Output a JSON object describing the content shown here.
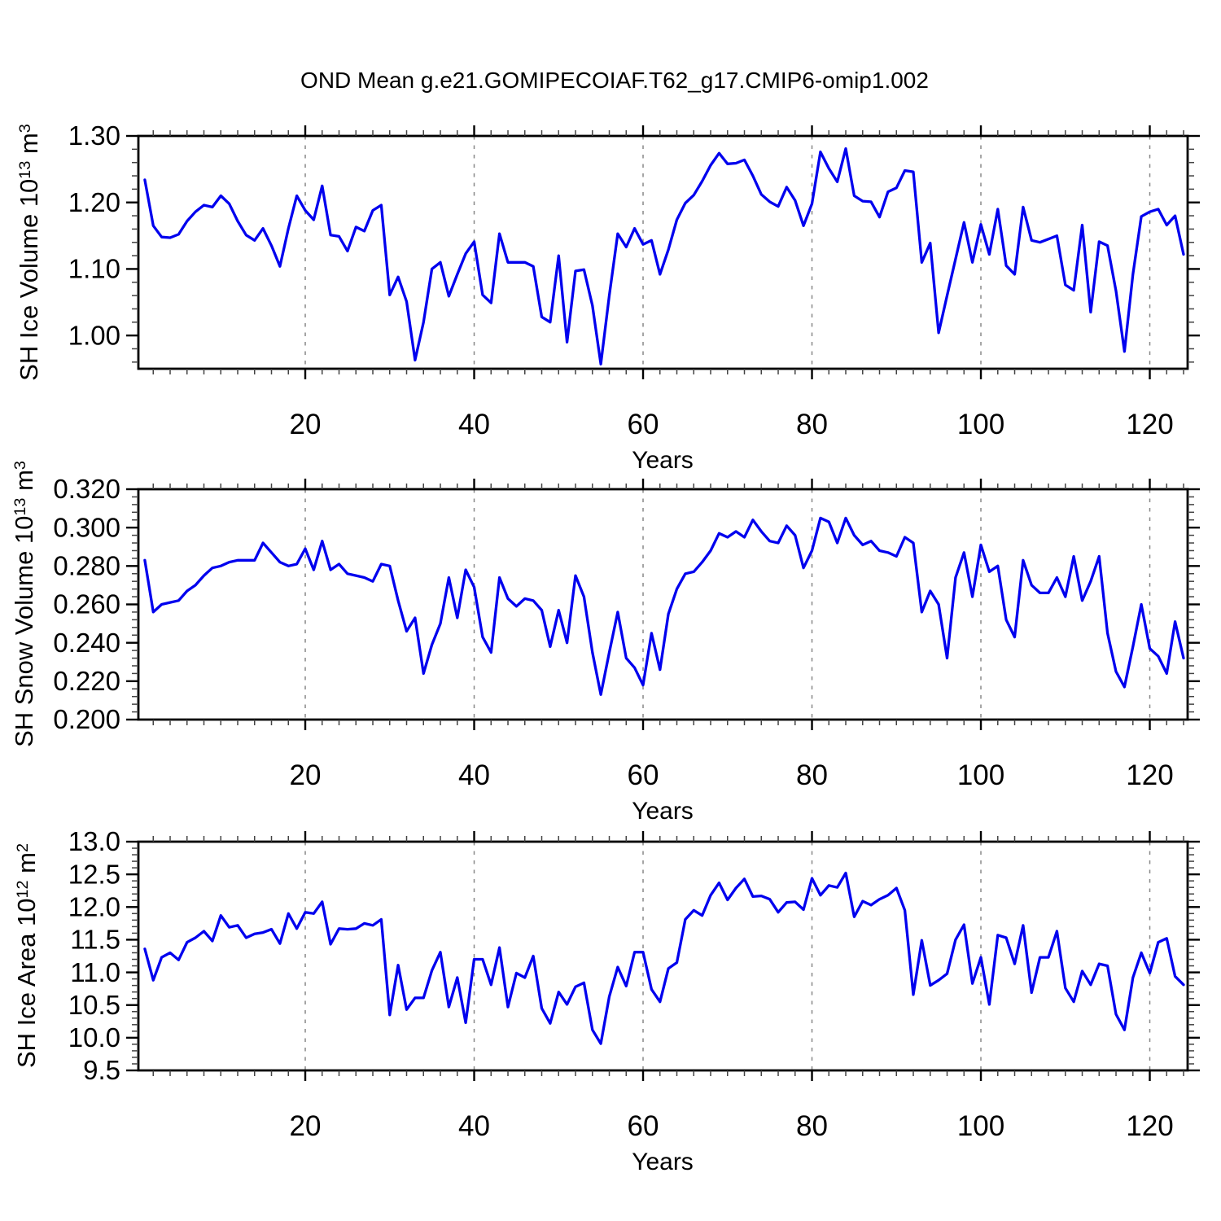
{
  "title": "OND Mean g.e21.GOMIPECOIAF.T62_g17.CMIP6-omip1.002",
  "xlabel": "Years",
  "line_color": "#0000ee",
  "grid_color": "#888888",
  "frame_color": "#000000",
  "chart_data": [
    {
      "type": "line",
      "name": "sh-ice-volume",
      "ylabel": {
        "text": "SH Ice Volume 10",
        "exp": "13",
        "unit": " m",
        "unit_exp": "3"
      },
      "xlabel": "Years",
      "x_start": 1,
      "xlim": [
        0.24,
        124.48
      ],
      "ylim": [
        0.95,
        1.3
      ],
      "yticks": [
        1.0,
        1.1,
        1.2,
        1.3
      ],
      "ytick_labels": [
        "1.00",
        "1.10",
        "1.20",
        "1.30"
      ],
      "yminor_step": 0.02,
      "grid": "vertical-dashed",
      "legend": "none",
      "values": [
        1.234,
        1.165,
        1.148,
        1.147,
        1.152,
        1.172,
        1.186,
        1.196,
        1.193,
        1.21,
        1.198,
        1.172,
        1.151,
        1.143,
        1.161,
        1.135,
        1.104,
        1.161,
        1.21,
        1.188,
        1.174,
        1.225,
        1.151,
        1.149,
        1.127,
        1.163,
        1.157,
        1.188,
        1.196,
        1.061,
        1.088,
        1.051,
        0.963,
        1.02,
        1.1,
        1.11,
        1.059,
        1.092,
        1.123,
        1.141,
        1.061,
        1.049,
        1.153,
        1.11,
        1.11,
        1.11,
        1.104,
        1.028,
        1.02,
        1.12,
        0.99,
        1.097,
        1.099,
        1.045,
        0.957,
        1.06,
        1.153,
        1.133,
        1.161,
        1.137,
        1.143,
        1.092,
        1.129,
        1.174,
        1.199,
        1.211,
        1.232,
        1.256,
        1.274,
        1.258,
        1.259,
        1.264,
        1.24,
        1.212,
        1.201,
        1.194,
        1.223,
        1.203,
        1.165,
        1.198,
        1.276,
        1.251,
        1.231,
        1.281,
        1.21,
        1.202,
        1.201,
        1.178,
        1.216,
        1.222,
        1.248,
        1.246,
        1.11,
        1.139,
        1.004,
        1.06,
        1.115,
        1.17,
        1.11,
        1.167,
        1.122,
        1.19,
        1.105,
        1.092,
        1.193,
        1.143,
        1.14,
        1.145,
        1.15,
        1.076,
        1.068,
        1.166,
        1.035,
        1.141,
        1.135,
        1.067,
        0.976,
        1.092,
        1.179,
        1.186,
        1.19,
        1.166,
        1.18,
        1.122
      ]
    },
    {
      "type": "line",
      "name": "sh-snow-volume",
      "ylabel": {
        "text": "SH Snow Volume 10",
        "exp": "13",
        "unit": " m",
        "unit_exp": "3"
      },
      "xlabel": "Years",
      "x_start": 1,
      "xlim": [
        0.24,
        124.48
      ],
      "ylim": [
        0.2,
        0.32
      ],
      "yticks": [
        0.2,
        0.22,
        0.24,
        0.26,
        0.28,
        0.3,
        0.32
      ],
      "ytick_labels": [
        "0.200",
        "0.220",
        "0.240",
        "0.260",
        "0.280",
        "0.300",
        "0.320"
      ],
      "yminor_step": 0.004,
      "grid": "vertical-dashed",
      "legend": "none",
      "values": [
        0.283,
        0.256,
        0.26,
        0.261,
        0.262,
        0.267,
        0.27,
        0.275,
        0.279,
        0.28,
        0.282,
        0.283,
        0.283,
        0.283,
        0.292,
        0.287,
        0.282,
        0.28,
        0.281,
        0.289,
        0.278,
        0.293,
        0.278,
        0.281,
        0.276,
        0.275,
        0.274,
        0.272,
        0.281,
        0.28,
        0.262,
        0.246,
        0.253,
        0.224,
        0.239,
        0.25,
        0.274,
        0.253,
        0.278,
        0.269,
        0.243,
        0.235,
        0.274,
        0.263,
        0.259,
        0.263,
        0.262,
        0.257,
        0.238,
        0.257,
        0.24,
        0.275,
        0.264,
        0.235,
        0.213,
        0.235,
        0.256,
        0.232,
        0.227,
        0.218,
        0.245,
        0.226,
        0.255,
        0.268,
        0.276,
        0.277,
        0.282,
        0.288,
        0.297,
        0.295,
        0.298,
        0.295,
        0.304,
        0.298,
        0.293,
        0.292,
        0.301,
        0.296,
        0.279,
        0.288,
        0.305,
        0.303,
        0.292,
        0.305,
        0.296,
        0.291,
        0.293,
        0.288,
        0.287,
        0.285,
        0.295,
        0.292,
        0.256,
        0.267,
        0.26,
        0.232,
        0.274,
        0.287,
        0.264,
        0.291,
        0.277,
        0.28,
        0.252,
        0.243,
        0.283,
        0.27,
        0.266,
        0.266,
        0.274,
        0.264,
        0.285,
        0.262,
        0.272,
        0.285,
        0.245,
        0.225,
        0.217,
        0.238,
        0.26,
        0.237,
        0.233,
        0.224,
        0.251,
        0.232
      ]
    },
    {
      "type": "line",
      "name": "sh-ice-area",
      "ylabel": {
        "text": "SH Ice Area 10",
        "exp": "12",
        "unit": " m",
        "unit_exp": "2"
      },
      "xlabel": "Years",
      "x_start": 1,
      "xlim": [
        0.24,
        124.48
      ],
      "ylim": [
        9.5,
        13.0
      ],
      "yticks": [
        9.5,
        10.0,
        10.5,
        11.0,
        11.5,
        12.0,
        12.5,
        13.0
      ],
      "ytick_labels": [
        "9.5",
        "10.0",
        "10.5",
        "11.0",
        "11.5",
        "12.0",
        "12.5",
        "13.0"
      ],
      "yminor_step": 0.1,
      "grid": "vertical-dashed",
      "legend": "none",
      "values": [
        11.36,
        10.88,
        11.23,
        11.3,
        11.19,
        11.46,
        11.53,
        11.63,
        11.48,
        11.87,
        11.69,
        11.72,
        11.53,
        11.59,
        11.61,
        11.66,
        11.44,
        11.9,
        11.67,
        11.92,
        11.9,
        12.08,
        11.43,
        11.67,
        11.66,
        11.67,
        11.75,
        11.72,
        11.81,
        10.35,
        11.11,
        10.43,
        10.61,
        10.61,
        11.03,
        11.31,
        10.47,
        10.92,
        10.23,
        11.2,
        11.2,
        10.81,
        11.38,
        10.47,
        10.99,
        10.92,
        11.25,
        10.45,
        10.22,
        10.7,
        10.51,
        10.78,
        10.84,
        10.12,
        9.91,
        10.63,
        11.08,
        10.79,
        11.31,
        11.31,
        10.74,
        10.55,
        11.06,
        11.15,
        11.81,
        11.95,
        11.87,
        12.18,
        12.37,
        12.11,
        12.29,
        12.43,
        12.16,
        12.17,
        12.12,
        11.92,
        12.07,
        12.08,
        11.96,
        12.44,
        12.18,
        12.33,
        12.3,
        12.52,
        11.85,
        12.09,
        12.03,
        12.12,
        12.18,
        12.29,
        11.95,
        10.66,
        11.49,
        10.8,
        10.88,
        10.98,
        11.5,
        11.73,
        10.83,
        11.23,
        10.51,
        11.57,
        11.53,
        11.13,
        11.72,
        10.69,
        11.23,
        11.23,
        11.63,
        10.76,
        10.55,
        11.02,
        10.81,
        11.13,
        11.1,
        10.36,
        10.12,
        10.92,
        11.3,
        10.99,
        11.46,
        11.52,
        10.94,
        10.81
      ]
    }
  ],
  "x_axis": {
    "ticks": [
      20,
      40,
      60,
      80,
      100,
      120
    ],
    "tick_labels": [
      "20",
      "40",
      "60",
      "80",
      "100",
      "120"
    ],
    "minor_step": 2,
    "gridlines": [
      20,
      40,
      60,
      80,
      100,
      120
    ]
  }
}
